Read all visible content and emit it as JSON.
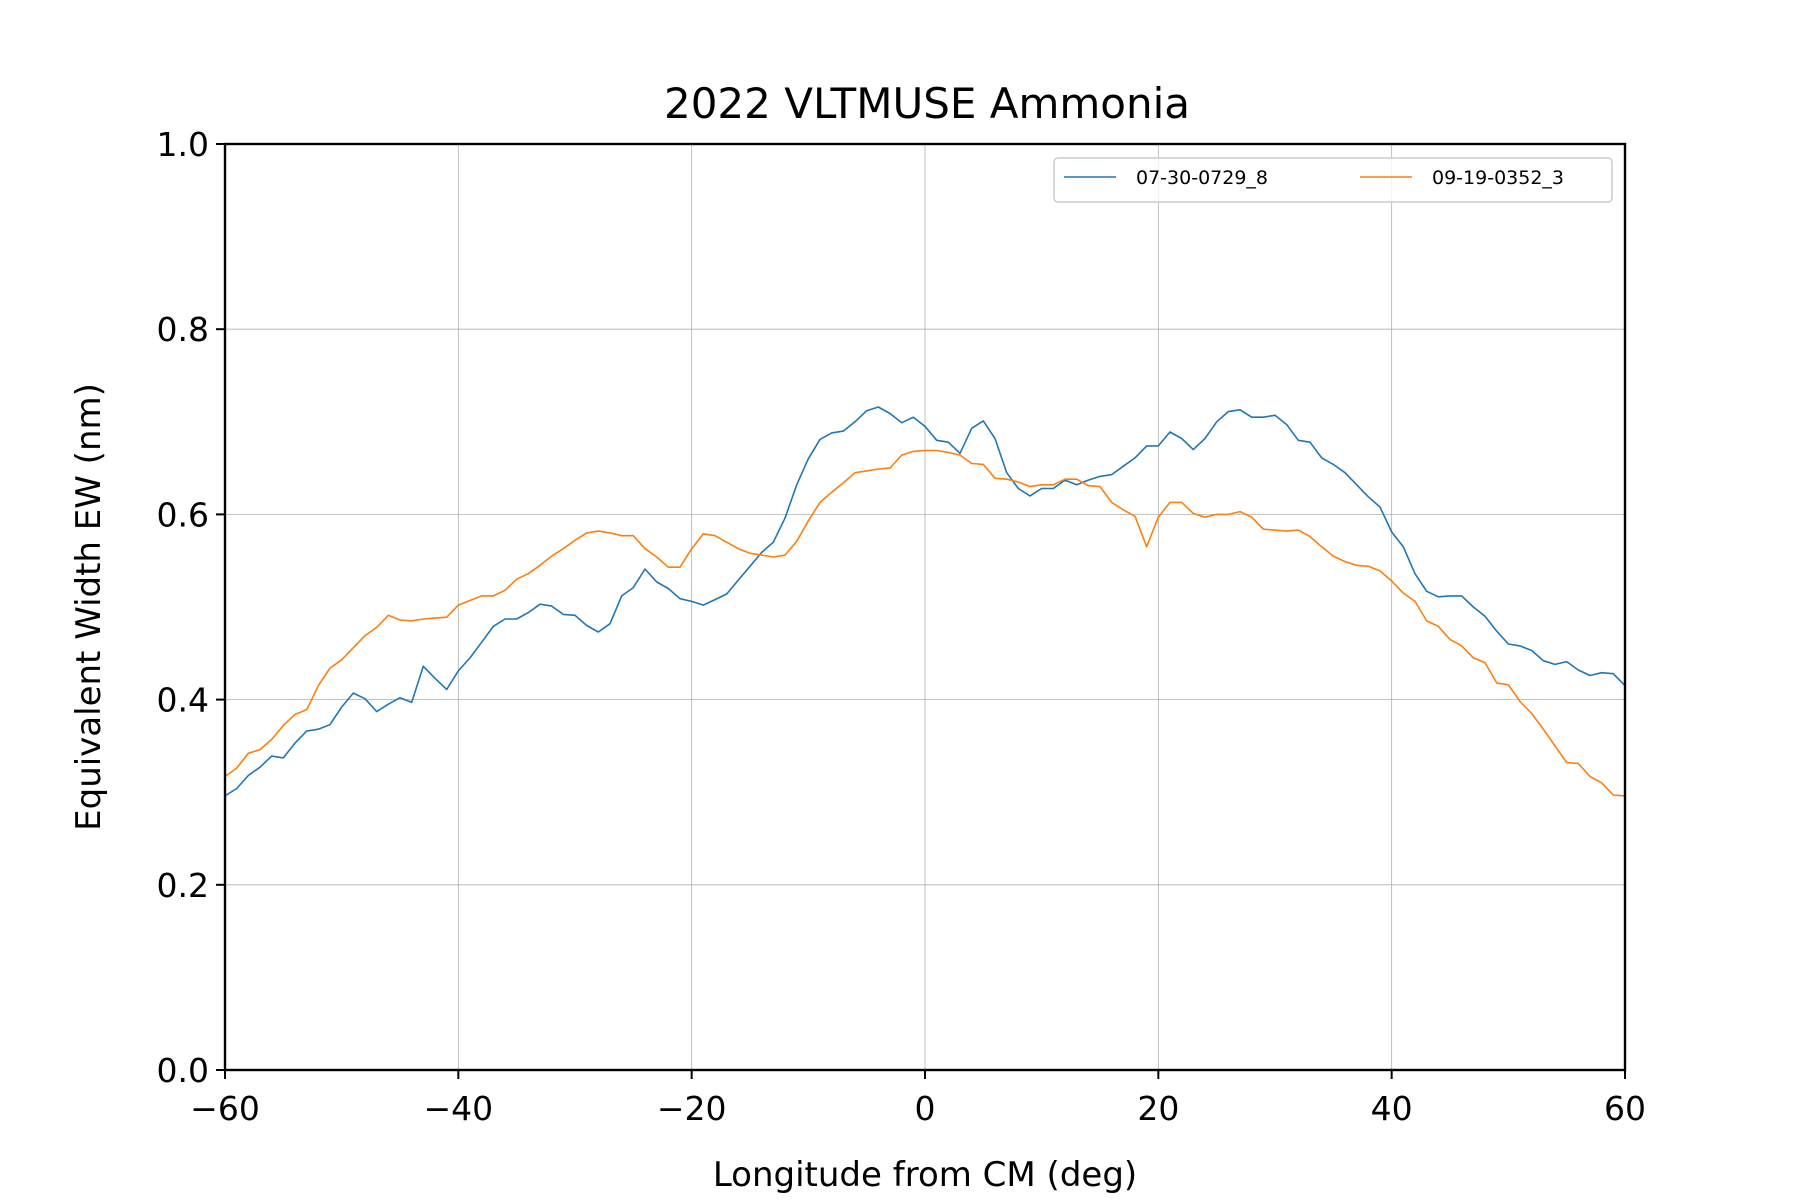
{
  "chart_data": {
    "type": "line",
    "title": "2022 VLTMUSE Ammonia",
    "xlabel": "Longitude from CM (deg)",
    "ylabel": "Equivalent Width EW (nm)",
    "xlim": [
      -60,
      60
    ],
    "ylim": [
      0.0,
      1.0
    ],
    "xticks": [
      "−60",
      "−40",
      "−20",
      "0",
      "20",
      "40",
      "60"
    ],
    "yticks": [
      "0.0",
      "0.2",
      "0.4",
      "0.6",
      "0.8",
      "1.0"
    ],
    "grid": true,
    "legend": "top-right",
    "series": [
      {
        "name": "07-30-0729_8",
        "color": "#1f77b4",
        "x": [
          -60,
          -59,
          -58,
          -57,
          -56,
          -55,
          -54,
          -53,
          -52,
          -51,
          -50,
          -49,
          -48,
          -47,
          -46,
          -45,
          -44,
          -43,
          -42,
          -41,
          -40,
          -39,
          -38,
          -37,
          -36,
          -35,
          -34,
          -33,
          -32,
          -31,
          -30,
          -29,
          -28,
          -27,
          -26,
          -25,
          -24,
          -23,
          -22,
          -21,
          -20,
          -19,
          -18,
          -17,
          -16,
          -15,
          -14,
          -13,
          -12,
          -11,
          -10,
          -9,
          -8,
          -7,
          -6,
          -5,
          -4,
          -3,
          -2,
          -1,
          0,
          1,
          2,
          3,
          4,
          5,
          6,
          7,
          8,
          9,
          10,
          11,
          12,
          13,
          14,
          15,
          16,
          17,
          18,
          19,
          20,
          21,
          22,
          23,
          24,
          25,
          26,
          27,
          28,
          29,
          30,
          31,
          32,
          33,
          34,
          35,
          36,
          37,
          38,
          39,
          40,
          41,
          42,
          43,
          44,
          45,
          46,
          47,
          48,
          49,
          50,
          51,
          52,
          53,
          54,
          55,
          56,
          57,
          58,
          59,
          60
        ],
        "y": [
          0.296,
          0.304,
          0.318,
          0.327,
          0.339,
          0.337,
          0.353,
          0.366,
          0.368,
          0.373,
          0.392,
          0.407,
          0.401,
          0.387,
          0.395,
          0.402,
          0.397,
          0.436,
          0.423,
          0.411,
          0.431,
          0.445,
          0.462,
          0.479,
          0.487,
          0.487,
          0.494,
          0.503,
          0.501,
          0.492,
          0.491,
          0.48,
          0.473,
          0.482,
          0.512,
          0.521,
          0.541,
          0.527,
          0.52,
          0.509,
          0.506,
          0.502,
          0.508,
          0.514,
          0.529,
          0.544,
          0.559,
          0.57,
          0.596,
          0.632,
          0.66,
          0.681,
          0.688,
          0.69,
          0.7,
          0.712,
          0.716,
          0.709,
          0.699,
          0.705,
          0.695,
          0.68,
          0.678,
          0.666,
          0.693,
          0.701,
          0.682,
          0.645,
          0.628,
          0.62,
          0.628,
          0.628,
          0.637,
          0.632,
          0.637,
          0.641,
          0.643,
          0.652,
          0.661,
          0.674,
          0.674,
          0.689,
          0.682,
          0.67,
          0.682,
          0.7,
          0.711,
          0.713,
          0.705,
          0.705,
          0.707,
          0.697,
          0.68,
          0.678,
          0.661,
          0.654,
          0.645,
          0.632,
          0.619,
          0.608,
          0.581,
          0.565,
          0.536,
          0.517,
          0.511,
          0.512,
          0.512,
          0.5,
          0.49,
          0.474,
          0.46,
          0.458,
          0.453,
          0.442,
          0.438,
          0.441,
          0.432,
          0.426,
          0.429,
          0.428,
          0.415
        ]
      },
      {
        "name": "09-19-0352_3",
        "color": "#ff7f0e",
        "x": [
          -60,
          -59,
          -58,
          -57,
          -56,
          -55,
          -54,
          -53,
          -52,
          -51,
          -50,
          -49,
          -48,
          -47,
          -46,
          -45,
          -44,
          -43,
          -42,
          -41,
          -40,
          -39,
          -38,
          -37,
          -36,
          -35,
          -34,
          -33,
          -32,
          -31,
          -30,
          -29,
          -28,
          -27,
          -26,
          -25,
          -24,
          -23,
          -22,
          -21,
          -20,
          -19,
          -18,
          -17,
          -16,
          -15,
          -14,
          -13,
          -12,
          -11,
          -10,
          -9,
          -8,
          -7,
          -6,
          -5,
          -4,
          -3,
          -2,
          -1,
          0,
          1,
          2,
          3,
          4,
          5,
          6,
          7,
          8,
          9,
          10,
          11,
          12,
          13,
          14,
          15,
          16,
          17,
          18,
          19,
          20,
          21,
          22,
          23,
          24,
          25,
          26,
          27,
          28,
          29,
          30,
          31,
          32,
          33,
          34,
          35,
          36,
          37,
          38,
          39,
          40,
          41,
          42,
          43,
          44,
          45,
          46,
          47,
          48,
          49,
          50,
          51,
          52,
          53,
          54,
          55,
          56,
          57,
          58,
          59,
          60
        ],
        "y": [
          0.317,
          0.326,
          0.342,
          0.346,
          0.357,
          0.372,
          0.384,
          0.389,
          0.415,
          0.434,
          0.443,
          0.456,
          0.469,
          0.478,
          0.491,
          0.486,
          0.485,
          0.487,
          0.488,
          0.489,
          0.502,
          0.507,
          0.512,
          0.512,
          0.518,
          0.53,
          0.536,
          0.545,
          0.555,
          0.563,
          0.572,
          0.58,
          0.582,
          0.58,
          0.577,
          0.577,
          0.563,
          0.554,
          0.543,
          0.543,
          0.563,
          0.579,
          0.577,
          0.57,
          0.563,
          0.558,
          0.556,
          0.554,
          0.556,
          0.571,
          0.593,
          0.613,
          0.624,
          0.634,
          0.645,
          0.647,
          0.649,
          0.65,
          0.664,
          0.668,
          0.669,
          0.669,
          0.667,
          0.664,
          0.655,
          0.654,
          0.639,
          0.638,
          0.635,
          0.63,
          0.632,
          0.632,
          0.638,
          0.638,
          0.631,
          0.63,
          0.613,
          0.605,
          0.598,
          0.565,
          0.597,
          0.613,
          0.613,
          0.601,
          0.597,
          0.6,
          0.6,
          0.603,
          0.597,
          0.584,
          0.583,
          0.582,
          0.583,
          0.576,
          0.565,
          0.555,
          0.549,
          0.545,
          0.544,
          0.539,
          0.528,
          0.515,
          0.506,
          0.485,
          0.479,
          0.465,
          0.458,
          0.445,
          0.44,
          0.418,
          0.416,
          0.398,
          0.385,
          0.368,
          0.35,
          0.332,
          0.331,
          0.317,
          0.31,
          0.297,
          0.296
        ]
      }
    ]
  }
}
